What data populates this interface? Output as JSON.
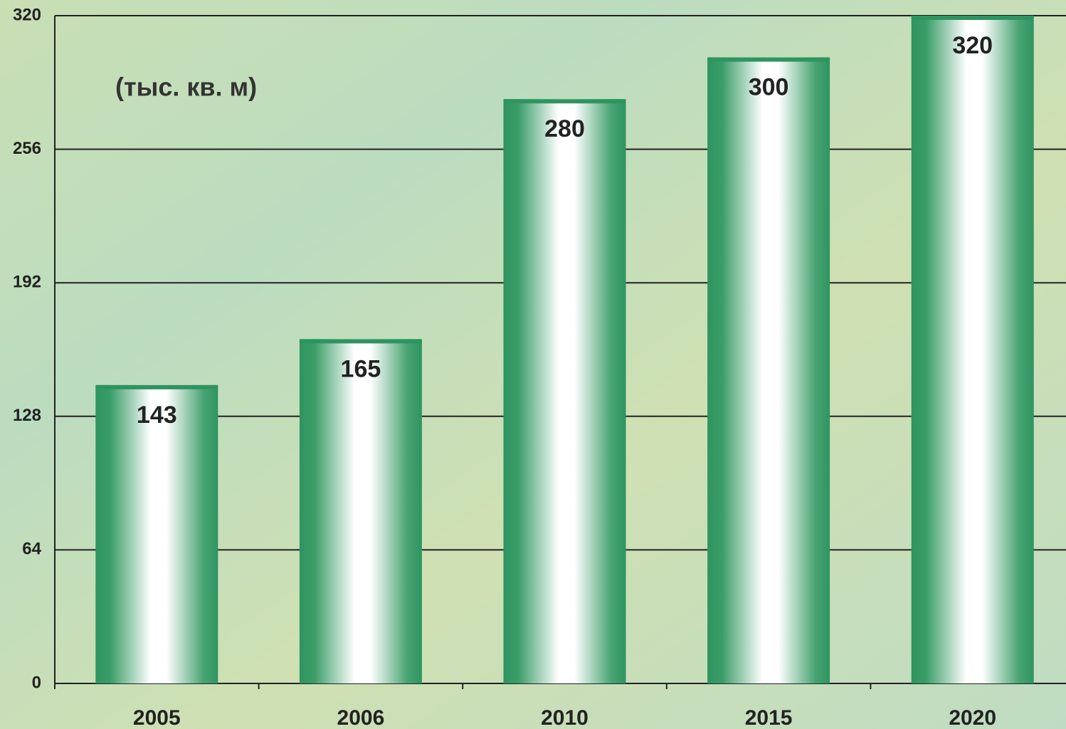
{
  "chart_data": {
    "type": "bar",
    "annotation": "(тыс. кв. м)",
    "categories": [
      "2005",
      "2006",
      "2010",
      "2015",
      "2020"
    ],
    "values": [
      143,
      165,
      280,
      300,
      320
    ],
    "color": "#2e9460",
    "ylim": [
      0,
      320
    ],
    "yticks": [
      0,
      64,
      128,
      192,
      256,
      320
    ],
    "grid": true
  }
}
